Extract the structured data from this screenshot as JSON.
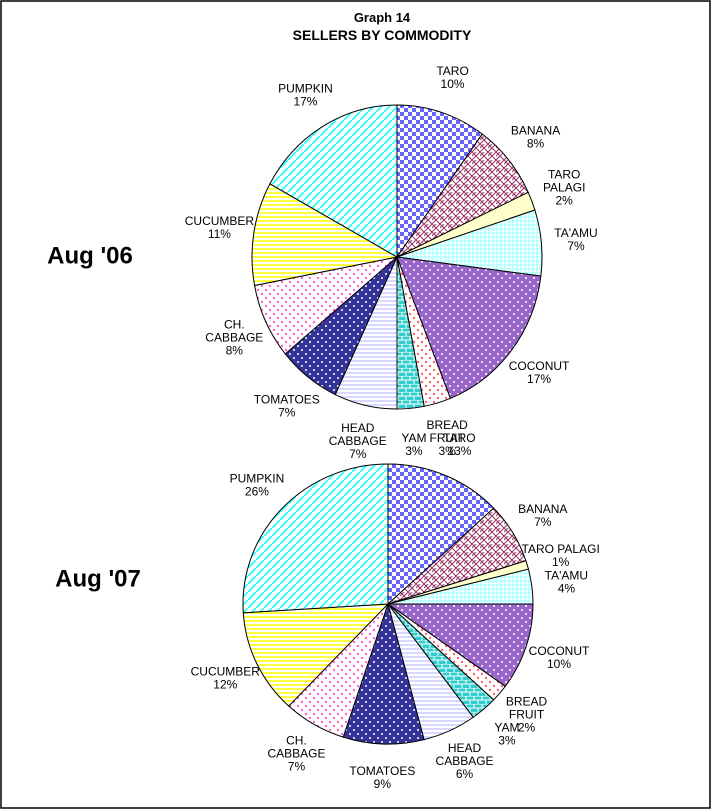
{
  "header": {
    "title": "Graph 14",
    "subtitle": "SELLERS BY COMMODITY"
  },
  "chart_data": [
    {
      "type": "pie",
      "title": "Aug '06",
      "categories": [
        "TARO",
        "BANANA",
        "TARO PALAGI",
        "TA'AMU",
        "COCONUT",
        "BREAD FRUIT",
        "YAM",
        "HEAD CABBAGE",
        "TOMATOES",
        "CH. CABBAGE",
        "CUCUMBER",
        "PUMPKIN"
      ],
      "values": [
        10,
        8,
        2,
        7,
        17,
        3,
        3,
        7,
        7,
        8,
        11,
        17
      ],
      "value_labels": [
        "10%",
        "8%",
        "2%",
        "7%",
        "17%",
        "3%",
        "3%",
        "7%",
        "7%",
        "8%",
        "11%",
        "17%"
      ],
      "colors": [
        "#6666ff",
        "#993366",
        "#ffffcc",
        "#99ffff",
        "#9966cc",
        "#ff6666",
        "#33cccc",
        "#ccccff",
        "#333399",
        "#ff66cc",
        "#ffff00",
        "#33ffff"
      ]
    },
    {
      "type": "pie",
      "title": "Aug '07",
      "categories": [
        "TARO",
        "BANANA",
        "TARO PALAGI",
        "TA'AMU",
        "COCONUT",
        "BREAD FRUIT",
        "YAM",
        "HEAD CABBAGE",
        "TOMATOES",
        "CH. CABBAGE",
        "CUCUMBER",
        "PUMPKIN"
      ],
      "values": [
        13,
        7,
        1,
        4,
        10,
        2,
        3,
        6,
        9,
        7,
        12,
        26
      ],
      "value_labels": [
        "13%",
        "7%",
        "1%",
        "4%",
        "10%",
        "2%",
        "3%",
        "6%",
        "9%",
        "7%",
        "12%",
        "26%"
      ],
      "colors": [
        "#6666ff",
        "#993366",
        "#ffffcc",
        "#99ffff",
        "#9966cc",
        "#ff6666",
        "#33cccc",
        "#ccccff",
        "#333399",
        "#ff66cc",
        "#ffff00",
        "#33ffff"
      ]
    }
  ]
}
